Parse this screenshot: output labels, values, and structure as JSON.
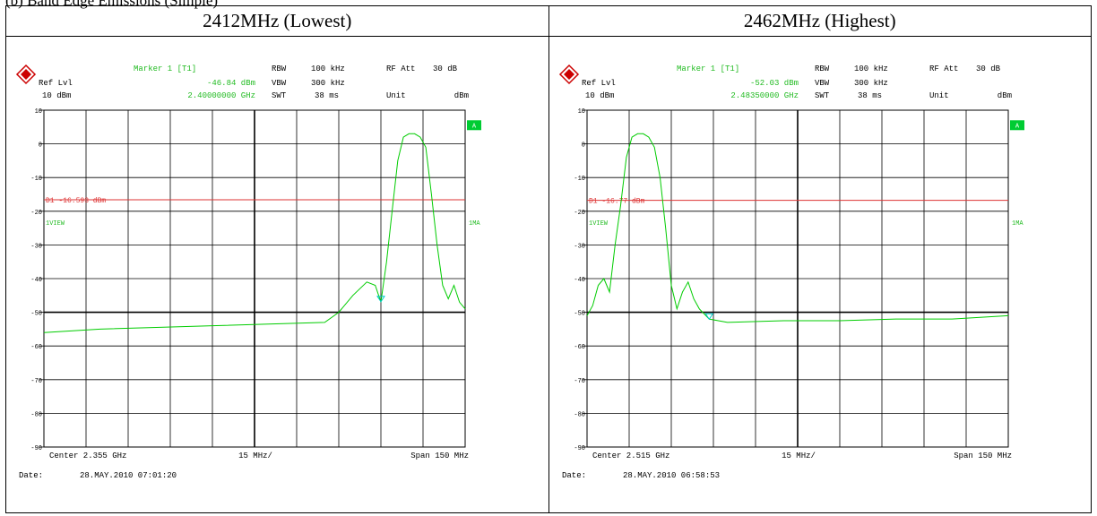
{
  "page_heading": "(b) Band Edge Emissions (Simple)",
  "colors": {
    "trace": "#00cc00",
    "label_green": "#22bb22",
    "display_line": "#dd3333",
    "marker": "#00cccc",
    "grid": "#000000",
    "logo": "#cc0000"
  },
  "plots": [
    {
      "header": "2412MHz (Lowest)",
      "logo_icon": "rohde-schwarz-logo",
      "marker_label": "Marker 1 [T1]",
      "marker_level": "-46.84 dBm",
      "marker_freq": "2.40000000 GHz",
      "ref_lvl_label": "Ref Lvl",
      "ref_lvl_value": "10 dBm",
      "rbw_label": "RBW",
      "rbw_value": "100 kHz",
      "vbw_label": "VBW",
      "vbw_value": "300 kHz",
      "swt_label": "SWT",
      "swt_value": "38 ms",
      "rfatt_label": "RF Att",
      "rfatt_value": "30 dB",
      "unit_label": "Unit",
      "unit_value": "dBm",
      "trace_tag": "1VIEW",
      "ma_tag": "1MA",
      "a_tag": "A",
      "display_line_label": "D1 -16.593 dBm",
      "center_label": "Center 2.355 GHz",
      "div_label": "15 MHz/",
      "span_label": "Span 150 MHz",
      "date_label": "Date:",
      "date_value": "28.MAY.2010  07:01:20"
    },
    {
      "header": "2462MHz (Highest)",
      "logo_icon": "rohde-schwarz-logo",
      "marker_label": "Marker 1 [T1]",
      "marker_level": "-52.03 dBm",
      "marker_freq": "2.48350000 GHz",
      "ref_lvl_label": "Ref Lvl",
      "ref_lvl_value": "10 dBm",
      "rbw_label": "RBW",
      "rbw_value": "100 kHz",
      "vbw_label": "VBW",
      "vbw_value": "300 kHz",
      "swt_label": "SWT",
      "swt_value": "38 ms",
      "rfatt_label": "RF Att",
      "rfatt_value": "30 dB",
      "unit_label": "Unit",
      "unit_value": "dBm",
      "trace_tag": "1VIEW",
      "ma_tag": "1MA",
      "a_tag": "A",
      "display_line_label": "D1 -16.77 dBm",
      "center_label": "Center 2.515 GHz",
      "div_label": "15 MHz/",
      "span_label": "Span 150 MHz",
      "date_label": "Date:",
      "date_value": "28.MAY.2010  06:58:53"
    }
  ],
  "chart_data": [
    {
      "type": "line",
      "xlim": [
        2.28,
        2.43
      ],
      "ylim": [
        -90,
        10
      ],
      "yticks": [
        10,
        0,
        -10,
        -20,
        -30,
        -40,
        -50,
        -60,
        -70,
        -80,
        -90
      ],
      "grid": true,
      "display_line_dbm": -16.593,
      "marker": {
        "x": 2.4,
        "y": -46.84
      },
      "series": [
        {
          "x": [
            2.28,
            2.3,
            2.32,
            2.34,
            2.36,
            2.38,
            2.385,
            2.39,
            2.395,
            2.398,
            2.4,
            2.402,
            2.404,
            2.406,
            2.408,
            2.41,
            2.412,
            2.414,
            2.416,
            2.418,
            2.42,
            2.422,
            2.424,
            2.426,
            2.428,
            2.43
          ],
          "y": [
            -56,
            -55,
            -54.5,
            -54,
            -53.5,
            -53,
            -50,
            -45,
            -41,
            -42,
            -47,
            -35,
            -20,
            -5,
            2,
            3,
            3,
            2,
            -1,
            -15,
            -30,
            -42,
            -46,
            -42,
            -47,
            -49
          ]
        }
      ]
    },
    {
      "type": "line",
      "xlim": [
        2.44,
        2.59
      ],
      "ylim": [
        -90,
        10
      ],
      "yticks": [
        10,
        0,
        -10,
        -20,
        -30,
        -40,
        -50,
        -60,
        -70,
        -80,
        -90
      ],
      "grid": true,
      "display_line_dbm": -16.77,
      "marker": {
        "x": 2.4835,
        "y": -52.03
      },
      "series": [
        {
          "x": [
            2.44,
            2.442,
            2.444,
            2.446,
            2.448,
            2.45,
            2.452,
            2.454,
            2.456,
            2.458,
            2.46,
            2.462,
            2.464,
            2.466,
            2.468,
            2.47,
            2.472,
            2.474,
            2.476,
            2.478,
            2.48,
            2.4835,
            2.49,
            2.51,
            2.53,
            2.55,
            2.57,
            2.59
          ],
          "y": [
            -51,
            -48,
            -42,
            -40,
            -44,
            -30,
            -18,
            -4,
            2,
            3,
            3,
            2,
            -1,
            -10,
            -25,
            -42,
            -49,
            -44,
            -41,
            -46,
            -49,
            -52,
            -53,
            -52.5,
            -52.5,
            -52,
            -52,
            -51
          ]
        }
      ]
    }
  ]
}
